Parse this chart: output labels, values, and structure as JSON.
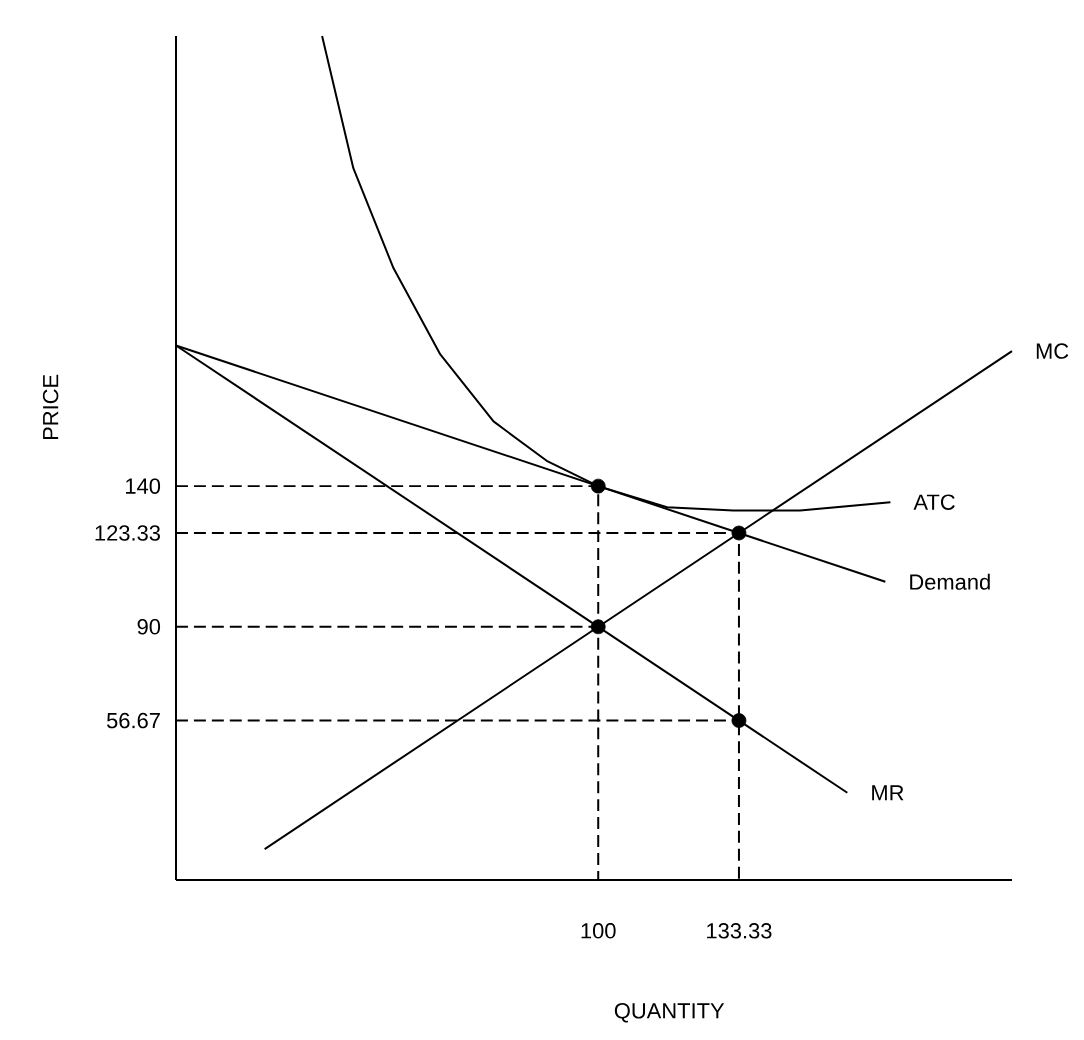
{
  "chart_data": {
    "type": "line",
    "xlabel": "QUANTITY",
    "ylabel": "PRICE",
    "xlim": [
      0,
      198
    ],
    "ylim": [
      0,
      300
    ],
    "xticks": [
      100,
      133.33
    ],
    "yticks": [
      56.67,
      90,
      123.33,
      140
    ],
    "series": [
      {
        "name": "MC",
        "color": "#000000",
        "x": [
          21,
          198
        ],
        "values": [
          11,
          188
        ]
      },
      {
        "name": "ATC",
        "color": "#000000",
        "x": [
          34.6,
          42,
          51.5,
          62.6,
          75.2,
          87.8,
          100,
          116.3,
          132,
          147.8,
          169.2
        ],
        "values": [
          300,
          253,
          217.5,
          186.8,
          163,
          149,
          140,
          132.5,
          131.3,
          131.3,
          134.3
        ]
      },
      {
        "name": "Demand",
        "color": "#000000",
        "x": [
          0,
          168
        ],
        "values": [
          190,
          106
        ]
      },
      {
        "name": "MR",
        "color": "#000000",
        "x": [
          0,
          159
        ],
        "values": [
          190,
          31
        ]
      },
      {
        "color": "#000000",
        "line_style": "dashed",
        "x": [
          0,
          100,
          100
        ],
        "values": [
          140,
          140,
          0
        ]
      },
      {
        "color": "#000000",
        "line_style": "dashed",
        "x": [
          0,
          133.33,
          133.33
        ],
        "values": [
          123.33,
          123.33,
          0
        ]
      },
      {
        "color": "#000000",
        "line_style": "dashed",
        "x": [
          0,
          100
        ],
        "values": [
          90,
          90
        ]
      },
      {
        "color": "#000000",
        "line_style": "dashed",
        "x": [
          0,
          133.33
        ],
        "values": [
          56.67,
          56.67
        ]
      },
      {
        "type": "scatter",
        "marker": "circle",
        "color": "#000000",
        "x": [
          100,
          133.33,
          100,
          133.33
        ],
        "values": [
          140,
          123.33,
          90,
          56.67
        ]
      }
    ]
  }
}
